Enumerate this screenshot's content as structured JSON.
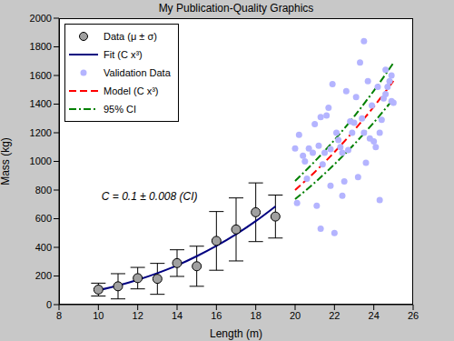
{
  "chart_data": {
    "type": "scatter",
    "title": "My Publication-Quality Graphics",
    "xlabel": "Length (m)",
    "ylabel": "Mass (kg)",
    "xlim": [
      8,
      26
    ],
    "xticks": [
      8,
      10,
      12,
      14,
      16,
      18,
      20,
      22,
      24,
      26
    ],
    "ylim": [
      0,
      2000
    ],
    "yticks": [
      0,
      200,
      400,
      600,
      800,
      1000,
      1200,
      1400,
      1600,
      1800,
      2000
    ],
    "grid": false,
    "legend": "northwest",
    "annotations": [
      {
        "text": "C = 0.1 ± 0.008 (CI)",
        "x": 12.6,
        "y": 760
      }
    ],
    "series": [
      {
        "name": "Data (μ ± σ)",
        "type": "scatter",
        "marker": "circle",
        "color": "#a0a0a0",
        "x": [
          10,
          11,
          12,
          13,
          14,
          15,
          16,
          17,
          18,
          19
        ],
        "values": [
          105,
          128,
          185,
          180,
          290,
          268,
          445,
          525,
          645,
          615
        ],
        "error": [
          45,
          88,
          75,
          108,
          93,
          140,
          205,
          220,
          205,
          150
        ]
      },
      {
        "name": "Fit (C x³)",
        "type": "line",
        "line_style": "solid",
        "color": "#000080",
        "x": [
          10,
          11,
          12,
          13,
          14,
          15,
          16,
          17,
          18,
          19
        ],
        "values": [
          100,
          133,
          173,
          220,
          274,
          338,
          410,
          491,
          583,
          686
        ]
      },
      {
        "name": "Validation Data",
        "type": "scatter",
        "marker": "circle",
        "color": "#b4b4ff",
        "x": [
          20.0,
          20.1,
          20.2,
          20.4,
          20.5,
          20.6,
          20.7,
          20.9,
          21.0,
          21.1,
          21.2,
          21.3,
          21.3,
          21.4,
          21.5,
          21.6,
          21.7,
          21.8,
          21.8,
          21.9,
          22.0,
          22.1,
          22.2,
          22.3,
          22.4,
          22.4,
          22.5,
          22.6,
          22.7,
          22.8,
          22.9,
          23.0,
          23.1,
          23.2,
          23.3,
          23.4,
          23.5,
          23.5,
          23.6,
          23.7,
          23.8,
          23.9,
          24.0,
          24.1,
          24.2,
          24.3,
          24.3,
          24.4,
          24.5,
          24.6,
          24.6,
          24.7,
          24.8,
          24.9,
          24.9,
          25.0
        ],
        "values": [
          1090,
          710,
          1185,
          1040,
          1000,
          880,
          1090,
          1060,
          1260,
          690,
          1110,
          1310,
          530,
          980,
          1060,
          1320,
          1375,
          1085,
          830,
          1540,
          500,
          1200,
          1150,
          1100,
          760,
          1060,
          860,
          1490,
          1080,
          1280,
          1200,
          1270,
          1450,
          890,
          1690,
          1300,
          1840,
          1200,
          990,
          1560,
          1160,
          1390,
          1140,
          1100,
          1520,
          730,
          1200,
          1290,
          1440,
          1470,
          1640,
          1520,
          1560,
          1420,
          1600,
          1410
        ]
      },
      {
        "name": "Model (C x³)",
        "type": "line",
        "line_style": "dashed",
        "color": "#ff0000",
        "x": [
          20,
          21,
          22,
          23,
          24,
          25
        ],
        "values": [
          800,
          926,
          1065,
          1217,
          1382,
          1562
        ]
      },
      {
        "name": "95% CI",
        "type": "line",
        "line_style": "dashdot",
        "color": "#008000",
        "x": [
          20,
          21,
          22,
          23,
          24,
          25
        ],
        "lower": [
          736,
          852,
          980,
          1119,
          1272,
          1437
        ],
        "upper": [
          864,
          1000,
          1150,
          1314,
          1493,
          1688
        ]
      }
    ]
  }
}
